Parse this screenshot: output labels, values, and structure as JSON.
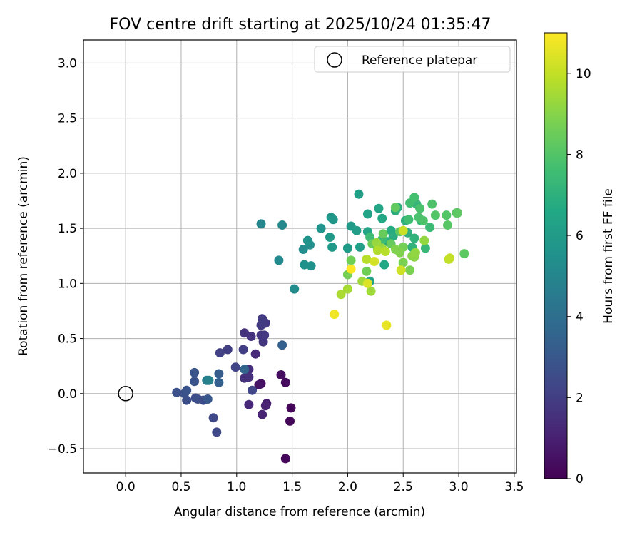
{
  "chart_data": {
    "type": "scatter",
    "title": "FOV centre drift starting at 2025/10/24 01:35:47",
    "xlabel": "Angular distance from reference (arcmin)",
    "ylabel": "Rotation from reference (arcmin)",
    "xlim": [
      -0.38,
      3.52
    ],
    "ylim": [
      -0.72,
      3.21
    ],
    "xticks": [
      0.0,
      0.5,
      1.0,
      1.5,
      2.0,
      2.5,
      3.0,
      3.5
    ],
    "xtick_labels": [
      "0.0",
      "0.5",
      "1.0",
      "1.5",
      "2.0",
      "2.5",
      "3.0",
      "3.5"
    ],
    "yticks": [
      -0.5,
      0.0,
      0.5,
      1.0,
      1.5,
      2.0,
      2.5,
      3.0
    ],
    "ytick_labels": [
      "−0.5",
      "0.0",
      "0.5",
      "1.0",
      "1.5",
      "2.0",
      "2.5",
      "3.0"
    ],
    "grid": true,
    "legend": {
      "position": "top-right",
      "entries": [
        "Reference platepar"
      ]
    },
    "reference_point": {
      "x": 0.0,
      "y": 0.0,
      "label": "Reference platepar"
    },
    "colorbar": {
      "label": "Hours from first FF file",
      "range": [
        0,
        11
      ],
      "ticks": [
        0,
        2,
        4,
        6,
        8,
        10
      ],
      "tick_labels": [
        "0",
        "2",
        "4",
        "6",
        "8",
        "10"
      ],
      "colormap": "viridis"
    },
    "points": [
      [
        1.44,
        -0.59,
        0.2
      ],
      [
        1.48,
        -0.25,
        0.2
      ],
      [
        1.49,
        -0.13,
        0.2
      ],
      [
        1.44,
        0.1,
        0.3
      ],
      [
        1.4,
        0.17,
        0.4
      ],
      [
        1.22,
        0.09,
        0.4
      ],
      [
        1.2,
        0.08,
        0.6
      ],
      [
        1.27,
        -0.09,
        0.9
      ],
      [
        1.26,
        -0.11,
        1.0
      ],
      [
        1.23,
        -0.19,
        1.1
      ],
      [
        1.11,
        -0.1,
        1.2
      ],
      [
        1.17,
        0.36,
        1.3
      ],
      [
        1.11,
        0.22,
        1.4
      ],
      [
        1.07,
        0.14,
        1.5
      ],
      [
        1.11,
        0.15,
        1.5
      ],
      [
        1.13,
        0.52,
        1.6
      ],
      [
        1.07,
        0.55,
        1.6
      ],
      [
        1.24,
        0.47,
        1.7
      ],
      [
        1.22,
        0.53,
        1.7
      ],
      [
        1.25,
        0.53,
        1.8
      ],
      [
        1.26,
        0.64,
        1.8
      ],
      [
        1.22,
        0.62,
        1.9
      ],
      [
        1.23,
        0.68,
        1.9
      ],
      [
        1.06,
        0.4,
        2.0
      ],
      [
        0.92,
        0.4,
        2.0
      ],
      [
        0.85,
        0.37,
        2.1
      ],
      [
        0.99,
        0.24,
        2.2
      ],
      [
        1.14,
        0.03,
        2.3
      ],
      [
        0.82,
        -0.35,
        2.4
      ],
      [
        0.79,
        -0.22,
        2.4
      ],
      [
        0.7,
        -0.06,
        2.5
      ],
      [
        0.63,
        -0.04,
        2.5
      ],
      [
        0.65,
        -0.05,
        2.6
      ],
      [
        0.55,
        -0.06,
        2.6
      ],
      [
        0.53,
        0.0,
        2.7
      ],
      [
        0.46,
        0.01,
        2.7
      ],
      [
        0.55,
        0.03,
        2.8
      ],
      [
        0.62,
        0.11,
        2.8
      ],
      [
        0.62,
        0.19,
        2.9
      ],
      [
        0.74,
        -0.05,
        3.0
      ],
      [
        0.84,
        0.18,
        3.2
      ],
      [
        0.84,
        0.1,
        3.3
      ],
      [
        1.41,
        0.44,
        3.4
      ],
      [
        1.07,
        0.22,
        3.6
      ],
      [
        0.73,
        0.12,
        4.6
      ],
      [
        0.75,
        0.12,
        4.8
      ],
      [
        1.22,
        1.54,
        5.0
      ],
      [
        1.41,
        1.53,
        5.1
      ],
      [
        1.38,
        1.21,
        5.2
      ],
      [
        1.52,
        0.95,
        5.3
      ],
      [
        1.6,
        1.31,
        5.3
      ],
      [
        1.66,
        1.35,
        5.4
      ],
      [
        1.61,
        1.17,
        5.5
      ],
      [
        1.67,
        1.16,
        5.5
      ],
      [
        1.64,
        1.39,
        5.6
      ],
      [
        1.76,
        1.5,
        5.7
      ],
      [
        1.85,
        1.6,
        5.8
      ],
      [
        1.87,
        1.58,
        5.8
      ],
      [
        1.84,
        1.42,
        5.9
      ],
      [
        1.86,
        1.33,
        5.9
      ],
      [
        2.0,
        1.32,
        6.0
      ],
      [
        2.03,
        1.52,
        6.0
      ],
      [
        2.08,
        1.48,
        6.1
      ],
      [
        2.11,
        1.33,
        6.1
      ],
      [
        2.1,
        1.81,
        6.2
      ],
      [
        2.18,
        1.63,
        6.3
      ],
      [
        2.2,
        1.02,
        6.3
      ],
      [
        2.18,
        1.47,
        6.4
      ],
      [
        2.27,
        1.31,
        6.5
      ],
      [
        2.28,
        1.68,
        6.5
      ],
      [
        2.33,
        1.17,
        6.6
      ],
      [
        2.31,
        1.59,
        6.6
      ],
      [
        2.39,
        1.48,
        6.7
      ],
      [
        2.36,
        1.38,
        6.8
      ],
      [
        2.41,
        1.43,
        6.8
      ],
      [
        2.43,
        1.66,
        6.9
      ],
      [
        2.45,
        1.69,
        6.9
      ],
      [
        2.52,
        1.57,
        7.0
      ],
      [
        2.54,
        1.46,
        7.0
      ],
      [
        2.58,
        1.33,
        7.1
      ],
      [
        2.6,
        1.41,
        7.1
      ],
      [
        2.62,
        1.72,
        7.2
      ],
      [
        2.66,
        1.57,
        7.2
      ],
      [
        2.7,
        1.32,
        7.3
      ],
      [
        2.74,
        1.51,
        7.4
      ],
      [
        2.29,
        1.33,
        7.4
      ],
      [
        2.31,
        1.4,
        7.5
      ],
      [
        2.2,
        1.42,
        7.5
      ],
      [
        2.55,
        1.58,
        7.6
      ],
      [
        2.56,
        1.73,
        7.6
      ],
      [
        2.6,
        1.78,
        7.7
      ],
      [
        2.65,
        1.68,
        7.8
      ],
      [
        2.64,
        1.6,
        7.8
      ],
      [
        2.68,
        1.57,
        7.9
      ],
      [
        2.76,
        1.72,
        7.9
      ],
      [
        2.79,
        1.62,
        8.0
      ],
      [
        2.89,
        1.62,
        8.0
      ],
      [
        2.9,
        1.53,
        8.1
      ],
      [
        2.98,
        1.64,
        8.1
      ],
      [
        2.99,
        1.64,
        8.2
      ],
      [
        3.05,
        1.27,
        8.2
      ],
      [
        2.47,
        1.47,
        8.3
      ],
      [
        2.43,
        1.69,
        8.3
      ],
      [
        2.39,
        1.36,
        8.4
      ],
      [
        2.32,
        1.45,
        8.4
      ],
      [
        2.22,
        1.36,
        8.5
      ],
      [
        2.17,
        1.11,
        8.6
      ],
      [
        2.03,
        1.21,
        8.6
      ],
      [
        2.0,
        1.08,
        8.7
      ],
      [
        2.5,
        1.33,
        8.7
      ],
      [
        2.56,
        1.12,
        8.8
      ],
      [
        2.5,
        1.19,
        8.8
      ],
      [
        2.43,
        1.31,
        8.9
      ],
      [
        2.47,
        1.28,
        8.9
      ],
      [
        2.58,
        1.25,
        9.0
      ],
      [
        2.6,
        1.24,
        9.1
      ],
      [
        2.61,
        1.28,
        9.2
      ],
      [
        2.69,
        1.39,
        9.2
      ],
      [
        2.31,
        1.32,
        9.3
      ],
      [
        2.26,
        1.37,
        9.3
      ],
      [
        2.13,
        1.02,
        9.4
      ],
      [
        2.21,
        0.93,
        9.4
      ],
      [
        2.0,
        0.95,
        9.5
      ],
      [
        1.94,
        0.9,
        9.6
      ],
      [
        2.27,
        1.3,
        9.7
      ],
      [
        2.34,
        1.29,
        9.8
      ],
      [
        2.17,
        1.22,
        9.8
      ],
      [
        2.91,
        1.22,
        9.9
      ],
      [
        2.92,
        1.23,
        10.0
      ],
      [
        2.5,
        1.48,
        10.1
      ],
      [
        2.48,
        1.12,
        10.2
      ],
      [
        2.24,
        1.2,
        10.3
      ],
      [
        2.18,
        1.0,
        10.4
      ],
      [
        2.35,
        0.62,
        10.6
      ],
      [
        1.88,
        0.72,
        10.8
      ],
      [
        2.03,
        1.13,
        11.0
      ]
    ]
  }
}
